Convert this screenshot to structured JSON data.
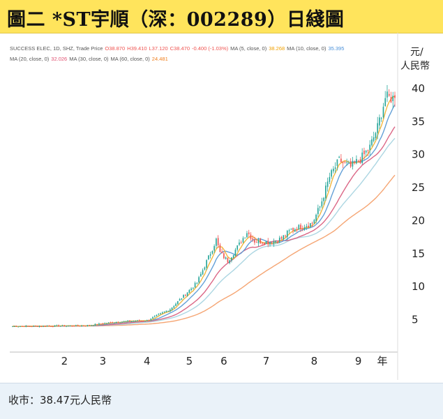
{
  "title": "圖二  *ST宇順（深：002289）日綫圖",
  "legend": {
    "line1": [
      {
        "text": "SUCCESS ELEC, 1D, SHZ, Trade Price",
        "color": "#555555"
      },
      {
        "text": "O38.870",
        "color": "#ef5350"
      },
      {
        "text": "H39.410",
        "color": "#ef5350"
      },
      {
        "text": "L37.120",
        "color": "#ef5350"
      },
      {
        "text": "C38.470",
        "color": "#ef5350"
      },
      {
        "text": "-0.400 (-1.03%)",
        "color": "#ef5350"
      },
      {
        "text": "MA (5, close, 0)",
        "color": "#555555"
      },
      {
        "text": "38.268",
        "color": "#f0a000"
      },
      {
        "text": "MA (10, close, 0)",
        "color": "#555555"
      },
      {
        "text": "35.395",
        "color": "#4a90d9"
      }
    ],
    "line2": [
      {
        "text": "MA (20, close, 0)",
        "color": "#555555"
      },
      {
        "text": "32.026",
        "color": "#e05070"
      },
      {
        "text": "MA (30, close, 0)",
        "color": "#555555"
      },
      {
        "text": "MA (60, close, 0)",
        "color": "#555555"
      },
      {
        "text": "24.481",
        "color": "#f08020"
      }
    ]
  },
  "footer": {
    "close_label": "收市：38.47元人民幣"
  },
  "chart_data": {
    "type": "candlestick",
    "y_unit_label": [
      "元/",
      "人民幣"
    ],
    "x_unit_label": "年",
    "ylim": [
      0,
      42
    ],
    "y_ticks": [
      5,
      10,
      15,
      20,
      25,
      30,
      35,
      40
    ],
    "x_ticks": [
      {
        "label": "2",
        "day": 27
      },
      {
        "label": "3",
        "day": 47
      },
      {
        "label": "4",
        "day": 70
      },
      {
        "label": "5",
        "day": 92
      },
      {
        "label": "6",
        "day": 110
      },
      {
        "label": "7",
        "day": 132
      },
      {
        "label": "8",
        "day": 157
      },
      {
        "label": "9",
        "day": 180
      }
    ],
    "n_days": 200,
    "grid": false,
    "colors": {
      "up": "#26a69a",
      "down": "#ef5350",
      "ma5": "#f2b233",
      "ma10": "#5b9bd5",
      "ma20": "#d95f7f",
      "ma30": "#a8d4e0",
      "ma60": "#f4a06b"
    },
    "key_prices": [
      {
        "day": 0,
        "close": 3.9
      },
      {
        "day": 38,
        "close": 4.0
      },
      {
        "day": 55,
        "close": 4.6
      },
      {
        "day": 70,
        "close": 4.8
      },
      {
        "day": 82,
        "close": 6.5
      },
      {
        "day": 96,
        "close": 10.5
      },
      {
        "day": 103,
        "close": 15.0
      },
      {
        "day": 106,
        "close": 17.0
      },
      {
        "day": 108,
        "close": 15.0
      },
      {
        "day": 112,
        "close": 13.8
      },
      {
        "day": 118,
        "close": 16.3
      },
      {
        "day": 122,
        "close": 18.2
      },
      {
        "day": 126,
        "close": 16.8
      },
      {
        "day": 134,
        "close": 16.6
      },
      {
        "day": 140,
        "close": 17.2
      },
      {
        "day": 145,
        "close": 18.5
      },
      {
        "day": 150,
        "close": 19.0
      },
      {
        "day": 156,
        "close": 19.5
      },
      {
        "day": 160,
        "close": 22.0
      },
      {
        "day": 165,
        "close": 26.5
      },
      {
        "day": 170,
        "close": 29.0
      },
      {
        "day": 176,
        "close": 28.0
      },
      {
        "day": 182,
        "close": 29.5
      },
      {
        "day": 186,
        "close": 31.0
      },
      {
        "day": 190,
        "close": 34.0
      },
      {
        "day": 194,
        "close": 38.5
      },
      {
        "day": 198,
        "close": 38.47
      }
    ],
    "ma_last": {
      "ma5": 38.268,
      "ma10": 35.395,
      "ma20": 32.026,
      "ma60": 24.481
    },
    "last_candle": {
      "open": 38.87,
      "high": 39.41,
      "low": 37.12,
      "close": 38.47,
      "change": -0.4,
      "change_pct": -1.03
    }
  }
}
